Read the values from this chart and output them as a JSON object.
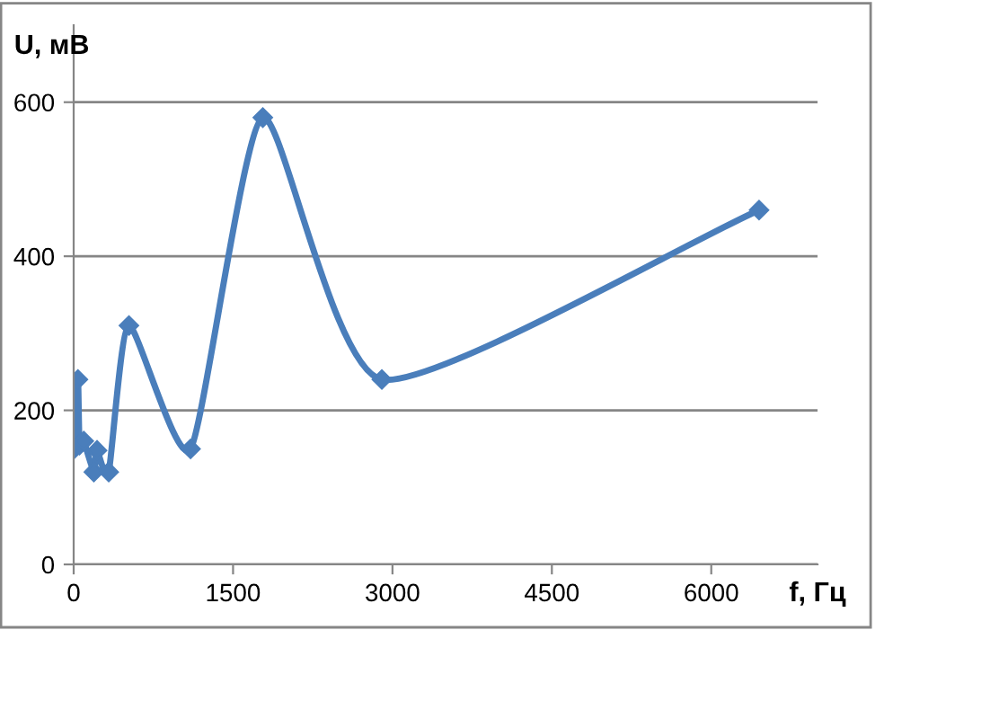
{
  "chart_data": {
    "type": "line",
    "xlabel": "f, Гц",
    "ylabel": "U, мВ",
    "x": [
      5,
      40,
      55,
      95,
      190,
      220,
      330,
      520,
      1100,
      1780,
      2900,
      6450
    ],
    "series": [
      {
        "color": "#4a7ebb",
        "values": [
          150,
          240,
          155,
          160,
          120,
          148,
          120,
          310,
          150,
          580,
          240,
          460
        ]
      }
    ],
    "xlim": [
      0,
      7000
    ],
    "xticks": [
      0,
      1500,
      3000,
      4500,
      6000
    ],
    "ylim": [
      0,
      700
    ],
    "yticks": [
      0,
      200,
      400,
      600
    ],
    "grid": "y",
    "marker": "diamond",
    "line_style": "solid",
    "legend": false
  }
}
